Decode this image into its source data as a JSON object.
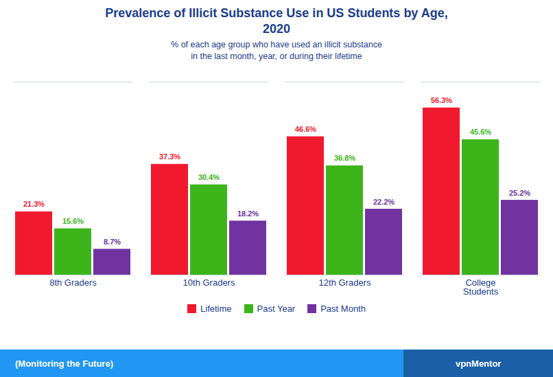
{
  "chart_data": {
    "type": "bar",
    "title": "Prevalence of Illicit Substance Use in US Students by Age,\n2020",
    "subtitle": "% of each age group who have used an illicit substance\nin the last month, year, or during their lifetime",
    "categories": [
      "8th Graders",
      "10th Graders",
      "12th Graders",
      "College\nStudents"
    ],
    "series": [
      {
        "name": "Lifetime",
        "color": "#f0192e",
        "values": [
          21.3,
          37.3,
          46.6,
          56.3
        ],
        "value_labels": [
          "21.3%",
          "37.3%",
          "46.6%",
          "56.3%"
        ]
      },
      {
        "name": "Past Year",
        "color": "#3db51a",
        "values": [
          15.6,
          30.4,
          36.8,
          45.6
        ],
        "value_labels": [
          "15.6%",
          "30.4%",
          "36.8%",
          "45.6%"
        ]
      },
      {
        "name": "Past Month",
        "color": "#7133a0",
        "values": [
          8.7,
          18.2,
          22.2,
          25.2
        ],
        "value_labels": [
          "8.7%",
          "18.2%",
          "22.2%",
          "25.2%"
        ]
      }
    ],
    "ylim": [
      0,
      65
    ],
    "tick_labels": "x",
    "data_labels": true,
    "grid": false,
    "legend": "bottom",
    "annotations": [
      "(Monitoring the Future)",
      "vpnMentor"
    ]
  }
}
